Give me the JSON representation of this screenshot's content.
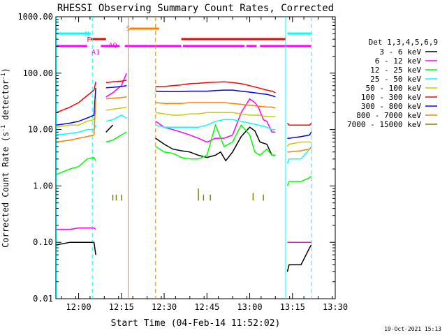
{
  "chart_data": {
    "type": "line",
    "title": "RHESSI Observing Summary Count Rates, Corrected",
    "xlabel": "Start Time (04-Feb-14 11:52:02)",
    "ylabel_main": "Corrected Count Rate (s",
    "ylabel_sup1": "-1",
    "ylabel_mid": " detector",
    "ylabel_sup2": "-1",
    "ylabel_end": ")",
    "yscale": "log",
    "ylim": [
      0.01,
      1000
    ],
    "xlim": [
      11.867,
      13.5
    ],
    "yticks": [
      {
        "v": 1000,
        "label": "1000.00"
      },
      {
        "v": 100,
        "label": "100.00"
      },
      {
        "v": 10,
        "label": "10.00"
      },
      {
        "v": 1,
        "label": "1.00"
      },
      {
        "v": 0.1,
        "label": "0.10"
      },
      {
        "v": 0.01,
        "label": "0.01"
      }
    ],
    "xticks": [
      {
        "v": 12.0,
        "label": "12:00"
      },
      {
        "v": 12.25,
        "label": "12:15"
      },
      {
        "v": 12.5,
        "label": "12:30"
      },
      {
        "v": 12.75,
        "label": "12:45"
      },
      {
        "v": 13.0,
        "label": "13:00"
      },
      {
        "v": 13.25,
        "label": "13:15"
      },
      {
        "v": 13.5,
        "label": "13:30"
      }
    ],
    "legend_title": "Det 1,3,4,5,6,9",
    "legend_position": "right",
    "timestamp": "19-Oct-2021 15:13",
    "series": [
      {
        "name": "3 - 6 keV",
        "color": "#000000",
        "x": [
          11.87,
          11.95,
          12.0,
          12.09,
          12.1,
          12.13,
          12.16,
          12.2,
          12.21,
          12.45,
          12.5,
          12.55,
          12.6,
          12.65,
          12.7,
          12.75,
          12.8,
          12.83,
          12.86,
          12.9,
          12.95,
          13.0,
          13.03,
          13.06,
          13.1,
          13.13,
          13.15,
          13.2,
          13.22,
          13.23,
          13.3,
          13.35,
          13.36
        ],
        "y": [
          0.09,
          0.1,
          0.1,
          0.1,
          0.06,
          null,
          9.0,
          12.0,
          null,
          7,
          5.5,
          4.5,
          4.2,
          4.0,
          3.5,
          3.2,
          3.5,
          4.0,
          2.8,
          4.0,
          7.5,
          11.0,
          9.5,
          6.0,
          5.5,
          3.5,
          3.5,
          null,
          0.03,
          0.04,
          0.04,
          0.08,
          0.09
        ]
      },
      {
        "name": "6 - 12 keV",
        "color": "#ff00ff",
        "x": [
          11.87,
          11.95,
          12.0,
          12.09,
          12.1,
          12.13,
          12.16,
          12.2,
          12.25,
          12.28,
          12.29,
          12.45,
          12.5,
          12.55,
          12.6,
          12.65,
          12.7,
          12.75,
          12.8,
          12.85,
          12.9,
          12.95,
          13.0,
          13.03,
          13.05,
          13.08,
          13.1,
          13.13,
          13.15,
          13.2,
          13.22,
          13.23,
          13.3,
          13.35,
          13.36
        ],
        "y": [
          0.17,
          0.17,
          0.18,
          0.18,
          0.17,
          null,
          38,
          45,
          60,
          100,
          null,
          14,
          11,
          10,
          9,
          8,
          7,
          6,
          7,
          7,
          8,
          20,
          35,
          30,
          25,
          15,
          14,
          9,
          9,
          null,
          0.1,
          0.1,
          0.1,
          0.1,
          0.1
        ]
      },
      {
        "name": "12 - 25 keV",
        "color": "#00ff00",
        "x": [
          11.87,
          11.95,
          12.0,
          12.05,
          12.09,
          12.1,
          12.13,
          12.16,
          12.2,
          12.25,
          12.28,
          12.29,
          12.45,
          12.5,
          12.55,
          12.6,
          12.65,
          12.7,
          12.75,
          12.8,
          12.85,
          12.9,
          12.95,
          13.0,
          13.03,
          13.06,
          13.1,
          13.13,
          13.15,
          13.2,
          13.22,
          13.23,
          13.3,
          13.35,
          13.36
        ],
        "y": [
          1.6,
          2.0,
          2.2,
          3.0,
          3.2,
          2.8,
          null,
          6,
          6.5,
          8,
          9,
          null,
          5,
          4,
          3.8,
          3.2,
          3.0,
          3.0,
          3.5,
          12,
          5,
          6,
          12,
          8,
          4,
          3.5,
          4.5,
          3.5,
          3.5,
          null,
          1.0,
          1.2,
          1.2,
          1.4,
          1.5
        ]
      },
      {
        "name": "25 - 50 keV",
        "color": "#00ffff",
        "x": [
          11.87,
          11.95,
          12.0,
          12.05,
          12.09,
          12.1,
          12.13,
          12.16,
          12.2,
          12.25,
          12.28,
          12.29,
          12.45,
          12.5,
          12.55,
          12.6,
          12.65,
          12.7,
          12.75,
          12.8,
          12.85,
          12.9,
          12.95,
          13.0,
          13.05,
          13.1,
          13.13,
          13.15,
          13.2,
          13.22,
          13.23,
          13.3,
          13.35,
          13.36
        ],
        "y": [
          8,
          8.5,
          9,
          10,
          10,
          12,
          null,
          14,
          15,
          18,
          16,
          null,
          12,
          11,
          11,
          11,
          11,
          11,
          12,
          14,
          15,
          15,
          14,
          13,
          12,
          11,
          10,
          10,
          null,
          2.5,
          3.0,
          3.0,
          4.5,
          5
        ]
      },
      {
        "name": "50 - 100 keV",
        "color": "#cccc00",
        "x": [
          11.87,
          11.95,
          12.0,
          12.05,
          12.09,
          12.1,
          12.13,
          12.16,
          12.2,
          12.25,
          12.28,
          12.29,
          12.45,
          12.5,
          12.55,
          12.6,
          12.65,
          12.7,
          12.75,
          12.8,
          12.85,
          12.9,
          12.95,
          13.0,
          13.05,
          13.1,
          13.13,
          13.15,
          13.2,
          13.22,
          13.23,
          13.3,
          13.35,
          13.36
        ],
        "y": [
          11,
          12,
          12,
          14,
          15,
          22,
          null,
          22,
          23,
          24,
          25,
          null,
          20,
          19,
          18,
          18,
          19,
          19,
          20,
          20,
          20,
          20,
          19,
          18,
          18,
          17,
          17,
          17,
          null,
          5,
          5.5,
          6,
          6,
          6
        ]
      },
      {
        "name": "100 - 300 keV",
        "color": "#ff0000",
        "x": [
          11.87,
          11.95,
          12.0,
          12.05,
          12.09,
          12.1,
          12.13,
          12.16,
          12.2,
          12.25,
          12.28,
          12.29,
          12.45,
          12.5,
          12.55,
          12.6,
          12.65,
          12.7,
          12.75,
          12.8,
          12.85,
          12.9,
          12.95,
          13.0,
          13.05,
          13.1,
          13.13,
          13.15,
          13.2,
          13.22,
          13.23,
          13.3,
          13.35,
          13.36
        ],
        "y": [
          20,
          25,
          30,
          40,
          50,
          70,
          null,
          68,
          70,
          72,
          75,
          null,
          58,
          58,
          60,
          62,
          65,
          66,
          68,
          69,
          70,
          68,
          65,
          60,
          55,
          50,
          48,
          45,
          null,
          13,
          12,
          12,
          12,
          13
        ]
      },
      {
        "name": "300 - 800 keV",
        "color": "#0000ff",
        "x": [
          11.87,
          11.95,
          12.0,
          12.05,
          12.09,
          12.1,
          12.13,
          12.16,
          12.2,
          12.25,
          12.28,
          12.29,
          12.45,
          12.5,
          12.55,
          12.6,
          12.65,
          12.7,
          12.75,
          12.8,
          12.85,
          12.9,
          12.95,
          13.0,
          13.05,
          13.1,
          13.13,
          13.15,
          13.2,
          13.22,
          13.23,
          13.3,
          13.35,
          13.36
        ],
        "y": [
          12,
          13,
          14,
          16,
          18,
          55,
          null,
          55,
          56,
          58,
          60,
          null,
          48,
          47,
          47,
          47,
          48,
          48,
          48,
          49,
          50,
          50,
          48,
          46,
          44,
          42,
          40,
          38,
          null,
          7,
          7,
          7.5,
          8,
          9
        ]
      },
      {
        "name": "800 - 7000 keV",
        "color": "#ff8000",
        "x": [
          11.87,
          11.95,
          12.0,
          12.05,
          12.09,
          12.1,
          12.13,
          12.16,
          12.2,
          12.25,
          12.28,
          12.29,
          12.45,
          12.5,
          12.55,
          12.6,
          12.65,
          12.7,
          12.75,
          12.8,
          12.85,
          12.9,
          12.95,
          13.0,
          13.05,
          13.1,
          13.13,
          13.15,
          13.2,
          13.22,
          13.23,
          13.3,
          13.35,
          13.36
        ],
        "y": [
          6,
          6.5,
          7,
          7.5,
          8,
          35,
          null,
          35,
          36,
          37,
          38,
          null,
          30,
          29,
          29,
          29,
          30,
          30,
          30,
          30,
          30,
          29,
          28,
          27,
          26,
          25,
          25,
          24,
          null,
          4,
          4,
          4.2,
          4.5,
          4.8
        ]
      },
      {
        "name": "7000 - 15000 keV",
        "color": "#808000",
        "x": [
          12.2,
          12.2,
          12.22,
          12.22,
          12.25,
          12.25,
          12.7,
          12.7,
          12.73,
          12.73,
          12.77,
          12.77,
          13.02,
          13.02,
          13.08,
          13.08
        ],
        "y": [
          0.55,
          0.7,
          0.55,
          0.7,
          0.55,
          0.7,
          0.55,
          0.9,
          0.55,
          0.7,
          0.55,
          0.7,
          0.55,
          0.75,
          0.55,
          0.7
        ],
        "style": "ticks"
      }
    ],
    "annotations": [
      {
        "label": "N",
        "color": "#00ffff",
        "x": 12.05
      },
      {
        "label": "F",
        "color": "#ff0000",
        "x": 12.06
      },
      {
        "label": "A1",
        "color": "#ff00ff",
        "x": 12.1
      },
      {
        "label": "S",
        "color": "#ff8000",
        "x": 12.29
      },
      {
        "label": "AQ",
        "color": "#ff00ff",
        "x": 12.2
      }
    ],
    "state_bars": [
      {
        "color": "#00ffff",
        "segments": [
          [
            11.87,
            12.07
          ],
          [
            13.22,
            13.36
          ]
        ]
      },
      {
        "color": "#ff0000",
        "segments": [
          [
            12.07,
            12.16
          ],
          [
            12.6,
            13.21
          ]
        ]
      },
      {
        "color": "#ff8000",
        "segments": [
          [
            12.3,
            12.47
          ]
        ]
      },
      {
        "color": "#ff00ff",
        "segments": [
          [
            11.87,
            12.05
          ],
          [
            12.13,
            12.24
          ],
          [
            12.27,
            12.6
          ],
          [
            12.61,
            12.97
          ],
          [
            12.98,
            13.04
          ],
          [
            13.06,
            13.36
          ]
        ]
      }
    ],
    "vlines": [
      {
        "x": 11.87,
        "color": "#00ffff",
        "dash": false
      },
      {
        "x": 12.08,
        "color": "#00ffff",
        "dash": true
      },
      {
        "x": 12.29,
        "color": "#ff8000",
        "dash": false
      },
      {
        "x": 12.45,
        "color": "#ff8000",
        "dash": true
      },
      {
        "x": 13.21,
        "color": "#00ffff",
        "dash": false
      },
      {
        "x": 13.36,
        "color": "#00ffff",
        "dash": true
      }
    ]
  }
}
